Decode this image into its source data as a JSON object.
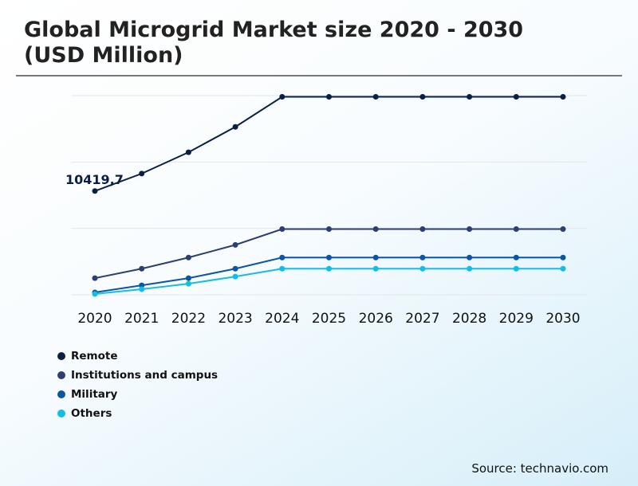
{
  "title_line1": "Global Microgrid Market size 2020 - 2030",
  "title_line2": "(USD Million)",
  "source": "Source: technavio.com",
  "chart_data": {
    "type": "line",
    "title": "Global Microgrid Market size 2020 - 2030 (USD Million)",
    "categories": [
      "2020",
      "2021",
      "2022",
      "2023",
      "2024",
      "2025",
      "2026",
      "2027",
      "2028",
      "2029",
      "2030"
    ],
    "ylim": [
      0,
      20000
    ],
    "grid": true,
    "legend_placement": "bottom-left",
    "annotation": {
      "series": "Remote",
      "category": "2020",
      "text": "10419,7"
    },
    "series": [
      {
        "name": "Remote",
        "color": "#0b1f45",
        "values": [
          10419.7,
          12170,
          14310,
          16860,
          19880,
          19880,
          19880,
          19880,
          19880,
          19880,
          19880
        ]
      },
      {
        "name": "Institutions and campus",
        "color": "#2b3f73",
        "values": [
          1670,
          2620,
          3740,
          5010,
          6600,
          6600,
          6600,
          6600,
          6600,
          6600,
          6600
        ]
      },
      {
        "name": "Military",
        "color": "#0a56a3",
        "values": [
          240,
          950,
          1670,
          2620,
          3740,
          3740,
          3740,
          3740,
          3740,
          3740,
          3740
        ]
      },
      {
        "name": "Others",
        "color": "#13bde3",
        "values": [
          80,
          560,
          1110,
          1830,
          2620,
          2620,
          2620,
          2620,
          2620,
          2620,
          2620
        ]
      }
    ]
  }
}
